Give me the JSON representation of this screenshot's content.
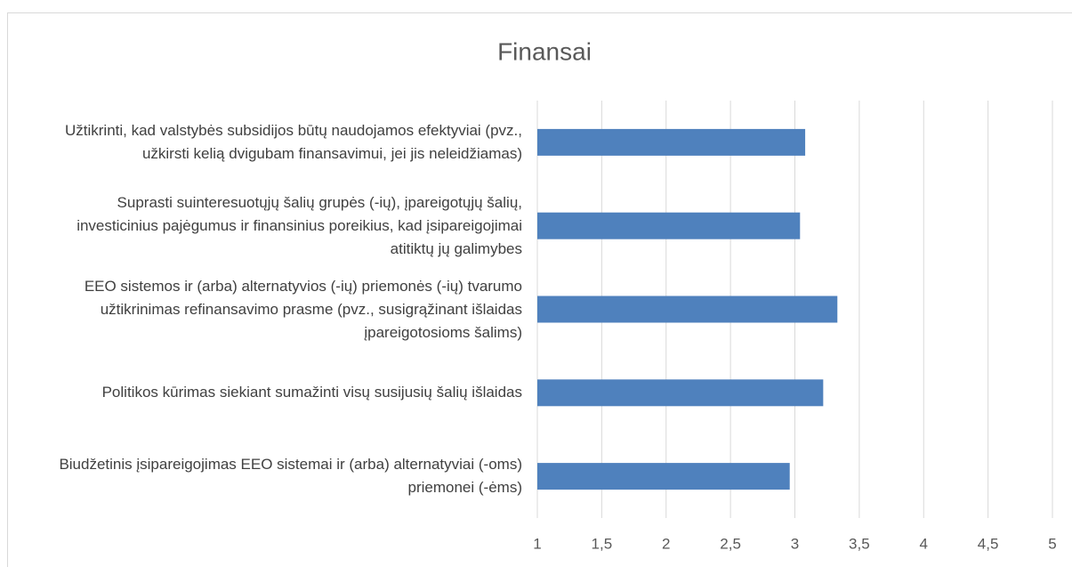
{
  "chart_data": {
    "type": "bar",
    "orientation": "horizontal",
    "title": "Finansai",
    "categories": [
      "Užtikrinti, kad valstybės subsidijos būtų naudojamos efektyviai (pvz., užkirsti kelią dvigubam finansavimui, jei jis neleidžiamas)",
      "Suprasti suinteresuotųjų šalių grupės (-ių), įpareigotųjų šalių, investicinius pajėgumus ir finansinius poreikius, kad įsipareigojimai atitiktų jų galimybes",
      "EEO sistemos ir (arba) alternatyvios (-ių) priemonės (-ių) tvarumo užtikrinimas refinansavimo prasme (pvz., susigrąžinant išlaidas įpareigotosioms šalims)",
      "Politikos kūrimas siekiant sumažinti visų susijusių šalių išlaidas",
      "Biudžetinis įsipareigojimas EEO sistemai ir (arba) alternatyviai (-oms) priemonei (-ėms)"
    ],
    "values": [
      3.08,
      3.04,
      3.33,
      3.22,
      2.96
    ],
    "color": "#4f81bd",
    "xlim": [
      1,
      5
    ],
    "xticks": [
      1,
      {
        "value": 1.5,
        "label": "1,5"
      },
      2,
      {
        "value": 2.5,
        "label": "2,5"
      },
      3,
      {
        "value": 3.5,
        "label": "3,5"
      },
      4,
      {
        "value": 4.5,
        "label": "4,5"
      },
      5
    ],
    "grid": true
  }
}
